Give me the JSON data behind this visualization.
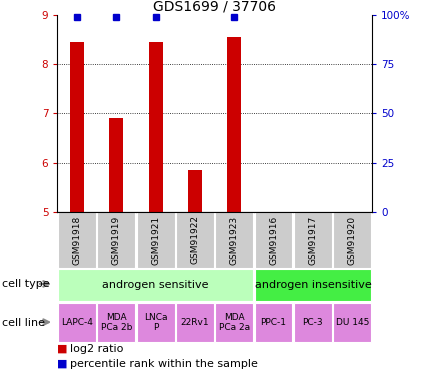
{
  "title": "GDS1699 / 37706",
  "samples": [
    "GSM91918",
    "GSM91919",
    "GSM91921",
    "GSM91922",
    "GSM91923",
    "GSM91916",
    "GSM91917",
    "GSM91920"
  ],
  "log2_values": [
    8.45,
    6.9,
    8.45,
    5.85,
    8.55,
    5.0,
    5.0,
    5.0
  ],
  "percentile_show": [
    true,
    true,
    true,
    false,
    true,
    false,
    false,
    false
  ],
  "ylim": [
    5,
    9
  ],
  "yticks": [
    5,
    6,
    7,
    8,
    9
  ],
  "right_yticks": [
    0,
    25,
    50,
    75,
    100
  ],
  "right_ytick_labels": [
    "0",
    "25",
    "50",
    "75",
    "100%"
  ],
  "bar_color": "#cc0000",
  "percentile_color": "#0000cc",
  "cell_type_groups": [
    {
      "label": "androgen sensitive",
      "start": 0,
      "end": 5,
      "color": "#bbffbb"
    },
    {
      "label": "androgen insensitive",
      "start": 5,
      "end": 8,
      "color": "#44ee44"
    }
  ],
  "cell_lines": [
    {
      "label": "LAPC-4"
    },
    {
      "label": "MDA\nPCa 2b"
    },
    {
      "label": "LNCa\nP"
    },
    {
      "label": "22Rv1"
    },
    {
      "label": "MDA\nPCa 2a"
    },
    {
      "label": "PPC-1"
    },
    {
      "label": "PC-3"
    },
    {
      "label": "DU 145"
    }
  ],
  "cell_line_color": "#dd88dd",
  "sample_bg_color": "#cccccc",
  "legend_red_label": "log2 ratio",
  "legend_blue_label": "percentile rank within the sample",
  "cell_type_label": "cell type",
  "cell_line_label": "cell line",
  "title_fontsize": 10,
  "tick_fontsize": 7.5,
  "sample_fontsize": 6.5,
  "label_fontsize": 8,
  "arrow_color": "#888888"
}
